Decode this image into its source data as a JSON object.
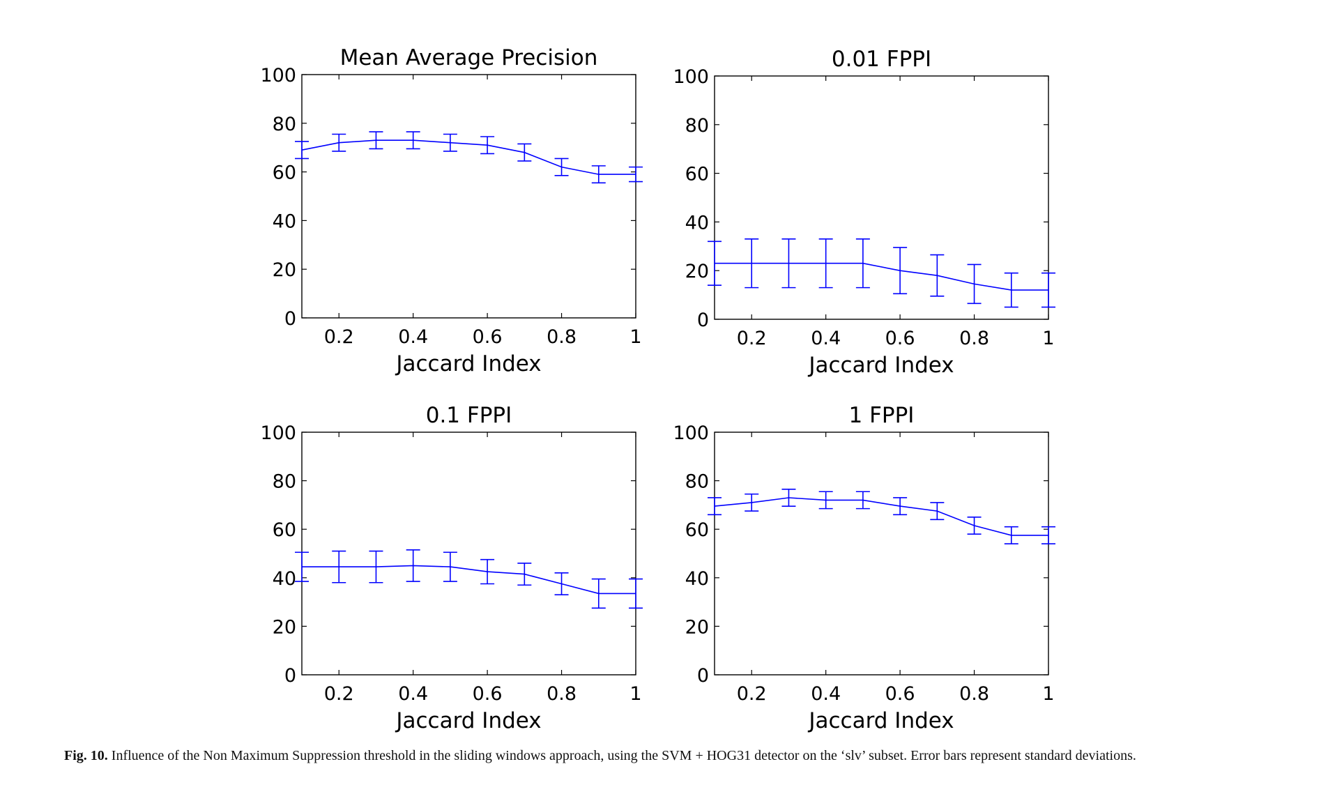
{
  "figure": {
    "label": "Fig. 10.",
    "caption": "Influence of the Non Maximum Suppression threshold in the sliding windows approach, using the SVM + HOG31 detector on the ‘slv’ subset. Error bars represent standard deviations."
  },
  "colors": {
    "series": "#0000ff",
    "axis": "#000000"
  },
  "chart_data": [
    {
      "type": "line",
      "title": "Mean Average Precision",
      "xlabel": "Jaccard Index",
      "ylabel": "",
      "xlim": [
        0.1,
        1.0
      ],
      "ylim": [
        0,
        100
      ],
      "xticks": [
        0.2,
        0.4,
        0.6,
        0.8,
        1
      ],
      "xticklabels": [
        "0.2",
        "0.4",
        "0.6",
        "0.8",
        "1"
      ],
      "yticks": [
        0,
        20,
        40,
        60,
        80,
        100
      ],
      "yticklabels": [
        "0",
        "20",
        "40",
        "60",
        "80",
        "100"
      ],
      "x": [
        0.1,
        0.2,
        0.3,
        0.4,
        0.5,
        0.6,
        0.7,
        0.8,
        0.9,
        1.0
      ],
      "series": [
        {
          "name": "SVM + HOG31",
          "values": [
            69,
            72,
            73,
            73,
            72,
            71,
            68,
            62,
            59,
            59
          ],
          "error": [
            3.5,
            3.5,
            3.5,
            3.5,
            3.5,
            3.5,
            3.5,
            3.5,
            3.5,
            3.0
          ]
        }
      ]
    },
    {
      "type": "line",
      "title": "0.01 FPPI",
      "xlabel": "Jaccard Index",
      "ylabel": "",
      "xlim": [
        0.1,
        1.0
      ],
      "ylim": [
        0,
        100
      ],
      "xticks": [
        0.2,
        0.4,
        0.6,
        0.8,
        1
      ],
      "xticklabels": [
        "0.2",
        "0.4",
        "0.6",
        "0.8",
        "1"
      ],
      "yticks": [
        0,
        20,
        40,
        60,
        80,
        100
      ],
      "yticklabels": [
        "0",
        "20",
        "40",
        "60",
        "80",
        "100"
      ],
      "x": [
        0.1,
        0.2,
        0.3,
        0.4,
        0.5,
        0.6,
        0.7,
        0.8,
        0.9,
        1.0
      ],
      "series": [
        {
          "name": "SVM + HOG31",
          "values": [
            23,
            23,
            23,
            23,
            23,
            20,
            18,
            14.5,
            12,
            12
          ],
          "error": [
            9,
            10,
            10,
            10,
            10,
            9.5,
            8.5,
            8,
            7,
            7
          ]
        }
      ]
    },
    {
      "type": "line",
      "title": "0.1 FPPI",
      "xlabel": "Jaccard Index",
      "ylabel": "",
      "xlim": [
        0.1,
        1.0
      ],
      "ylim": [
        0,
        100
      ],
      "xticks": [
        0.2,
        0.4,
        0.6,
        0.8,
        1
      ],
      "xticklabels": [
        "0.2",
        "0.4",
        "0.6",
        "0.8",
        "1"
      ],
      "yticks": [
        0,
        20,
        40,
        60,
        80,
        100
      ],
      "yticklabels": [
        "0",
        "20",
        "40",
        "60",
        "80",
        "100"
      ],
      "x": [
        0.1,
        0.2,
        0.3,
        0.4,
        0.5,
        0.6,
        0.7,
        0.8,
        0.9,
        1.0
      ],
      "series": [
        {
          "name": "SVM + HOG31",
          "values": [
            44.5,
            44.5,
            44.5,
            45,
            44.5,
            42.5,
            41.5,
            37.5,
            33.5,
            33.5
          ],
          "error": [
            6,
            6.5,
            6.5,
            6.5,
            6,
            5,
            4.5,
            4.5,
            6,
            6
          ]
        }
      ]
    },
    {
      "type": "line",
      "title": "1 FPPI",
      "xlabel": "Jaccard Index",
      "ylabel": "",
      "xlim": [
        0.1,
        1.0
      ],
      "ylim": [
        0,
        100
      ],
      "xticks": [
        0.2,
        0.4,
        0.6,
        0.8,
        1
      ],
      "xticklabels": [
        "0.2",
        "0.4",
        "0.6",
        "0.8",
        "1"
      ],
      "yticks": [
        0,
        20,
        40,
        60,
        80,
        100
      ],
      "yticklabels": [
        "0",
        "20",
        "40",
        "60",
        "80",
        "100"
      ],
      "x": [
        0.1,
        0.2,
        0.3,
        0.4,
        0.5,
        0.6,
        0.7,
        0.8,
        0.9,
        1.0
      ],
      "series": [
        {
          "name": "SVM + HOG31",
          "values": [
            69.5,
            71,
            73,
            72,
            72,
            69.5,
            67.5,
            61.5,
            57.5,
            57.5
          ],
          "error": [
            3.5,
            3.5,
            3.5,
            3.5,
            3.5,
            3.5,
            3.5,
            3.5,
            3.5,
            3.5
          ]
        }
      ]
    }
  ]
}
